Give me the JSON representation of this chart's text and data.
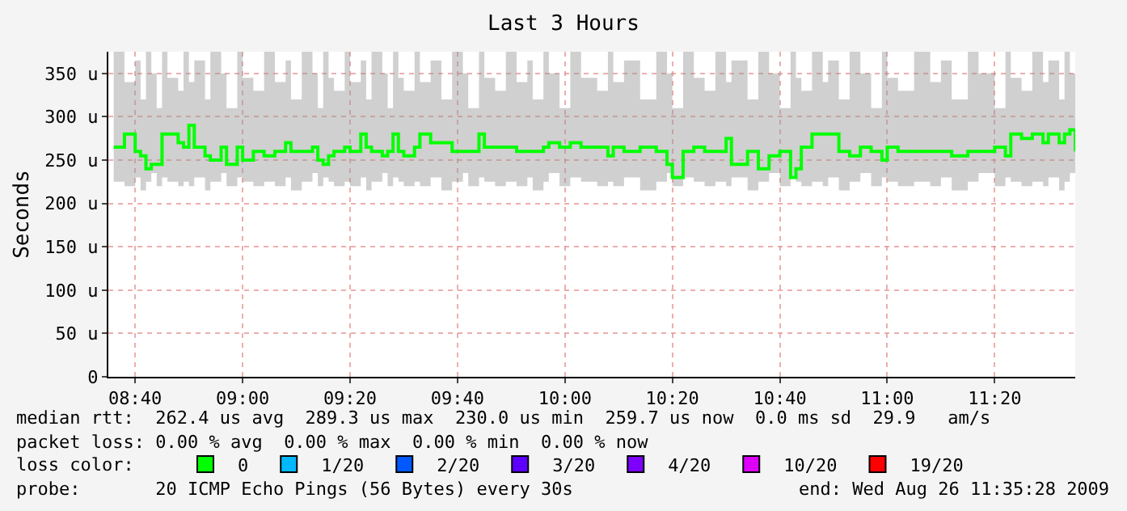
{
  "chart_data": {
    "type": "step",
    "title": "Last 3 Hours",
    "ylabel": "Seconds",
    "x": [
      "2009-08-26T08:36",
      "2009-08-26T08:38",
      "2009-08-26T08:40",
      "2009-08-26T08:41",
      "2009-08-26T08:42",
      "2009-08-26T08:43",
      "2009-08-26T08:44",
      "2009-08-26T08:45",
      "2009-08-26T08:46",
      "2009-08-26T08:48",
      "2009-08-26T08:49",
      "2009-08-26T08:50",
      "2009-08-26T08:51",
      "2009-08-26T08:53",
      "2009-08-26T08:54",
      "2009-08-26T08:56",
      "2009-08-26T08:57",
      "2009-08-26T08:59",
      "2009-08-26T09:00",
      "2009-08-26T09:02",
      "2009-08-26T09:04",
      "2009-08-26T09:06",
      "2009-08-26T09:08",
      "2009-08-26T09:09",
      "2009-08-26T09:11",
      "2009-08-26T09:13",
      "2009-08-26T09:14",
      "2009-08-26T09:15",
      "2009-08-26T09:16",
      "2009-08-26T09:17",
      "2009-08-26T09:19",
      "2009-08-26T09:20",
      "2009-08-26T09:22",
      "2009-08-26T09:23",
      "2009-08-26T09:24",
      "2009-08-26T09:26",
      "2009-08-26T09:27",
      "2009-08-26T09:28",
      "2009-08-26T09:29",
      "2009-08-26T09:30",
      "2009-08-26T09:32",
      "2009-08-26T09:33",
      "2009-08-26T09:35",
      "2009-08-26T09:37",
      "2009-08-26T09:39",
      "2009-08-26T09:41",
      "2009-08-26T09:42",
      "2009-08-26T09:44",
      "2009-08-26T09:45",
      "2009-08-26T09:47",
      "2009-08-26T09:49",
      "2009-08-26T09:51",
      "2009-08-26T09:53",
      "2009-08-26T09:54",
      "2009-08-26T09:56",
      "2009-08-26T09:57",
      "2009-08-26T09:59",
      "2009-08-26T10:01",
      "2009-08-26T10:03",
      "2009-08-26T10:06",
      "2009-08-26T10:08",
      "2009-08-26T10:09",
      "2009-08-26T10:11",
      "2009-08-26T10:14",
      "2009-08-26T10:17",
      "2009-08-26T10:19",
      "2009-08-26T10:20",
      "2009-08-26T10:22",
      "2009-08-26T10:24",
      "2009-08-26T10:26",
      "2009-08-26T10:28",
      "2009-08-26T10:30",
      "2009-08-26T10:31",
      "2009-08-26T10:34",
      "2009-08-26T10:36",
      "2009-08-26T10:38",
      "2009-08-26T10:40",
      "2009-08-26T10:42",
      "2009-08-26T10:43",
      "2009-08-26T10:44",
      "2009-08-26T10:46",
      "2009-08-26T10:48",
      "2009-08-26T10:49",
      "2009-08-26T10:51",
      "2009-08-26T10:53",
      "2009-08-26T10:55",
      "2009-08-26T10:57",
      "2009-08-26T10:59",
      "2009-08-26T11:00",
      "2009-08-26T11:02",
      "2009-08-26T11:05",
      "2009-08-26T11:08",
      "2009-08-26T11:10",
      "2009-08-26T11:12",
      "2009-08-26T11:15",
      "2009-08-26T11:17",
      "2009-08-26T11:20",
      "2009-08-26T11:22",
      "2009-08-26T11:23",
      "2009-08-26T11:25",
      "2009-08-26T11:27",
      "2009-08-26T11:29",
      "2009-08-26T11:30",
      "2009-08-26T11:32",
      "2009-08-26T11:33",
      "2009-08-26T11:34",
      "2009-08-26T11:35"
    ],
    "series": [
      {
        "name": "0",
        "color": "#00ff00",
        "values": [
          265,
          280,
          260,
          255,
          240,
          245,
          245,
          280,
          280,
          270,
          265,
          290,
          265,
          255,
          250,
          265,
          245,
          265,
          250,
          260,
          255,
          260,
          270,
          260,
          260,
          265,
          250,
          245,
          255,
          260,
          265,
          260,
          280,
          265,
          260,
          255,
          260,
          280,
          260,
          255,
          265,
          280,
          270,
          270,
          260,
          260,
          260,
          280,
          265,
          265,
          265,
          260,
          260,
          260,
          265,
          270,
          265,
          270,
          265,
          265,
          255,
          265,
          260,
          265,
          260,
          245,
          230,
          260,
          265,
          260,
          260,
          275,
          245,
          260,
          240,
          255,
          260,
          230,
          240,
          265,
          280,
          280,
          280,
          260,
          255,
          265,
          260,
          250,
          265,
          260,
          260,
          260,
          260,
          255,
          260,
          260,
          265,
          255,
          280,
          275,
          280,
          270,
          280,
          270,
          280,
          285,
          260
        ],
        "lower": [
          225,
          220,
          230,
          215,
          225,
          235,
          220,
          230,
          225,
          220,
          225,
          220,
          230,
          215,
          225,
          235,
          220,
          230,
          225,
          220,
          225,
          220,
          230,
          215,
          225,
          235,
          220,
          230,
          225,
          220,
          225,
          220,
          230,
          215,
          225,
          235,
          220,
          230,
          225,
          220,
          225,
          220,
          230,
          215,
          225,
          235,
          220,
          230,
          225,
          220,
          225,
          220,
          230,
          215,
          225,
          235,
          220,
          230,
          225,
          220,
          225,
          220,
          230,
          215,
          225,
          235,
          220,
          230,
          225,
          220,
          225,
          220,
          230,
          215,
          225,
          235,
          220,
          230,
          225,
          220,
          225,
          220,
          230,
          215,
          225,
          235,
          220,
          230,
          225,
          220,
          225,
          220,
          230,
          215,
          225,
          235,
          220,
          230,
          225,
          220,
          225,
          220,
          230,
          215,
          225,
          235,
          220
        ],
        "upper": [
          375,
          340,
          365,
          320,
          375,
          350,
          310,
          375,
          345,
          330,
          375,
          340,
          365,
          320,
          375,
          350,
          310,
          375,
          345,
          330,
          375,
          340,
          365,
          320,
          375,
          350,
          310,
          375,
          345,
          330,
          375,
          340,
          365,
          320,
          375,
          350,
          310,
          375,
          345,
          330,
          375,
          340,
          365,
          320,
          375,
          350,
          310,
          375,
          345,
          330,
          375,
          340,
          365,
          320,
          375,
          350,
          310,
          375,
          345,
          330,
          375,
          340,
          365,
          320,
          375,
          350,
          310,
          375,
          345,
          330,
          375,
          340,
          365,
          320,
          375,
          350,
          310,
          375,
          345,
          330,
          375,
          340,
          365,
          320,
          375,
          350,
          310,
          375,
          345,
          330,
          375,
          340,
          365,
          320,
          375,
          350,
          310,
          375,
          345,
          330,
          375,
          340,
          365,
          320,
          375,
          350,
          310
        ]
      },
      {
        "name": "1/20",
        "color": "#00b8ff",
        "values": [
          null,
          null,
          null,
          null,
          null,
          null,
          null,
          null,
          null,
          null,
          null,
          null,
          null,
          null,
          null,
          null,
          null,
          null,
          null,
          null,
          null,
          null,
          null,
          null,
          null,
          null,
          null,
          null,
          null,
          null,
          null,
          null,
          null,
          null,
          null,
          null,
          null,
          null,
          null,
          null,
          null,
          null,
          null,
          null,
          null,
          null,
          null,
          null,
          null,
          null,
          null,
          null,
          null,
          null,
          null,
          null,
          null,
          null,
          null,
          null,
          null,
          null,
          null,
          null,
          null,
          null,
          null,
          null,
          null,
          null,
          null,
          null,
          null,
          null,
          null,
          null,
          null,
          null,
          null,
          null,
          null,
          null,
          null,
          null,
          null,
          null,
          null,
          null,
          null,
          null,
          null,
          null,
          null,
          null,
          null,
          null,
          null,
          null,
          null,
          null,
          null,
          null,
          null,
          null,
          null,
          null,
          null
        ]
      },
      {
        "name": "2/20",
        "color": "#0059ff",
        "values": [
          null,
          null,
          null,
          null,
          null,
          null,
          null,
          null,
          null,
          null,
          null,
          null,
          null,
          null,
          null,
          null,
          null,
          null,
          null,
          null,
          null,
          null,
          null,
          null,
          null,
          null,
          null,
          null,
          null,
          null,
          null,
          null,
          null,
          null,
          null,
          null,
          null,
          null,
          null,
          null,
          null,
          null,
          null,
          null,
          null,
          null,
          null,
          null,
          null,
          null,
          null,
          null,
          null,
          null,
          null,
          null,
          null,
          null,
          null,
          null,
          null,
          null,
          null,
          null,
          null,
          null,
          null,
          null,
          null,
          null,
          null,
          null,
          null,
          null,
          null,
          null,
          null,
          null,
          null,
          null,
          null,
          null,
          null,
          null,
          null,
          null,
          null,
          null,
          null,
          null,
          null,
          null,
          null,
          null,
          null,
          null,
          null,
          null,
          null,
          null,
          null,
          null,
          null,
          null,
          null,
          null,
          null
        ]
      },
      {
        "name": "3/20",
        "color": "#5e00ff",
        "values": [
          null,
          null,
          null,
          null,
          null,
          null,
          null,
          null,
          null,
          null,
          null,
          null,
          null,
          null,
          null,
          null,
          null,
          null,
          null,
          null,
          null,
          null,
          null,
          null,
          null,
          null,
          null,
          null,
          null,
          null,
          null,
          null,
          null,
          null,
          null,
          null,
          null,
          null,
          null,
          null,
          null,
          null,
          null,
          null,
          null,
          null,
          null,
          null,
          null,
          null,
          null,
          null,
          null,
          null,
          null,
          null,
          null,
          null,
          null,
          null,
          null,
          null,
          null,
          null,
          null,
          null,
          null,
          null,
          null,
          null,
          null,
          null,
          null,
          null,
          null,
          null,
          null,
          null,
          null,
          null,
          null,
          null,
          null,
          null,
          null,
          null,
          null,
          null,
          null,
          null,
          null,
          null,
          null,
          null,
          null,
          null,
          null,
          null,
          null,
          null,
          null,
          null,
          null,
          null,
          null,
          null,
          null
        ]
      },
      {
        "name": "4/20",
        "color": "#7e00ff",
        "values": [
          null,
          null,
          null,
          null,
          null,
          null,
          null,
          null,
          null,
          null,
          null,
          null,
          null,
          null,
          null,
          null,
          null,
          null,
          null,
          null,
          null,
          null,
          null,
          null,
          null,
          null,
          null,
          null,
          null,
          null,
          null,
          null,
          null,
          null,
          null,
          null,
          null,
          null,
          null,
          null,
          null,
          null,
          null,
          null,
          null,
          null,
          null,
          null,
          null,
          null,
          null,
          null,
          null,
          null,
          null,
          null,
          null,
          null,
          null,
          null,
          null,
          null,
          null,
          null,
          null,
          null,
          null,
          null,
          null,
          null,
          null,
          null,
          null,
          null,
          null,
          null,
          null,
          null,
          null,
          null,
          null,
          null,
          null,
          null,
          null,
          null,
          null,
          null,
          null,
          null,
          null,
          null,
          null,
          null,
          null,
          null,
          null,
          null,
          null,
          null,
          null,
          null,
          null,
          null,
          null,
          null,
          null
        ]
      },
      {
        "name": "10/20",
        "color": "#dd00ff",
        "values": [
          null,
          null,
          null,
          null,
          null,
          null,
          null,
          null,
          null,
          null,
          null,
          null,
          null,
          null,
          null,
          null,
          null,
          null,
          null,
          null,
          null,
          null,
          null,
          null,
          null,
          null,
          null,
          null,
          null,
          null,
          null,
          null,
          null,
          null,
          null,
          null,
          null,
          null,
          null,
          null,
          null,
          null,
          null,
          null,
          null,
          null,
          null,
          null,
          null,
          null,
          null,
          null,
          null,
          null,
          null,
          null,
          null,
          null,
          null,
          null,
          null,
          null,
          null,
          null,
          null,
          null,
          null,
          null,
          null,
          null,
          null,
          null,
          null,
          null,
          null,
          null,
          null,
          null,
          null,
          null,
          null,
          null,
          null,
          null,
          null,
          null,
          null,
          null,
          null,
          null,
          null,
          null,
          null,
          null,
          null,
          null,
          null,
          null,
          null,
          null,
          null,
          null,
          null,
          null,
          null,
          null,
          null
        ]
      },
      {
        "name": "19/20",
        "color": "#ff0000",
        "values": [
          null,
          null,
          null,
          null,
          null,
          null,
          null,
          null,
          null,
          null,
          null,
          null,
          null,
          null,
          null,
          null,
          null,
          null,
          null,
          null,
          null,
          null,
          null,
          null,
          null,
          null,
          null,
          null,
          null,
          null,
          null,
          null,
          null,
          null,
          null,
          null,
          null,
          null,
          null,
          null,
          null,
          null,
          null,
          null,
          null,
          null,
          null,
          null,
          null,
          null,
          null,
          null,
          null,
          null,
          null,
          null,
          null,
          null,
          null,
          null,
          null,
          null,
          null,
          null,
          null,
          null,
          null,
          null,
          null,
          null,
          null,
          null,
          null,
          null,
          null,
          null,
          null,
          null,
          null,
          null,
          null,
          null,
          null,
          null,
          null,
          null,
          null,
          null,
          null,
          null,
          null,
          null,
          null,
          null,
          null,
          null,
          null,
          null,
          null,
          null,
          null,
          null,
          null,
          null,
          null,
          null,
          null
        ]
      }
    ],
    "xlim": [
      "2009-08-26T08:35",
      "2009-08-26T11:35"
    ],
    "xticks": [
      {
        "value": "2009-08-26T08:40",
        "label": "08:40"
      },
      {
        "value": "2009-08-26T09:00",
        "label": "09:00"
      },
      {
        "value": "2009-08-26T09:20",
        "label": "09:20"
      },
      {
        "value": "2009-08-26T09:40",
        "label": "09:40"
      },
      {
        "value": "2009-08-26T10:00",
        "label": "10:00"
      },
      {
        "value": "2009-08-26T10:20",
        "label": "10:20"
      },
      {
        "value": "2009-08-26T10:40",
        "label": "10:40"
      },
      {
        "value": "2009-08-26T11:00",
        "label": "11:00"
      },
      {
        "value": "2009-08-26T11:20",
        "label": "11:20"
      }
    ],
    "ylim": [
      0,
      375
    ],
    "yticks": [
      0,
      {
        "value": 50,
        "label": "50 u"
      },
      {
        "value": 100,
        "label": "100 u"
      },
      {
        "value": 150,
        "label": "150 u"
      },
      {
        "value": 200,
        "label": "200 u"
      },
      {
        "value": 250,
        "label": "250 u"
      },
      {
        "value": 300,
        "label": "300 u"
      },
      {
        "value": 350,
        "label": "350 u"
      }
    ],
    "grid": true,
    "legend": "bottom",
    "annotations": [
      "median rtt:  262.4 us avg  289.3 us max  230.0 us min  259.7 us now  0.0 ms sd  29.9   am/s",
      "packet loss: 0.00 % avg  0.00 % max  0.00 % min  0.00 % now",
      "loss color:",
      "probe:       20 ICMP Echo Pings (56 Bytes) every 30s",
      "end: Wed Aug 26 11:35:28 2009"
    ]
  }
}
